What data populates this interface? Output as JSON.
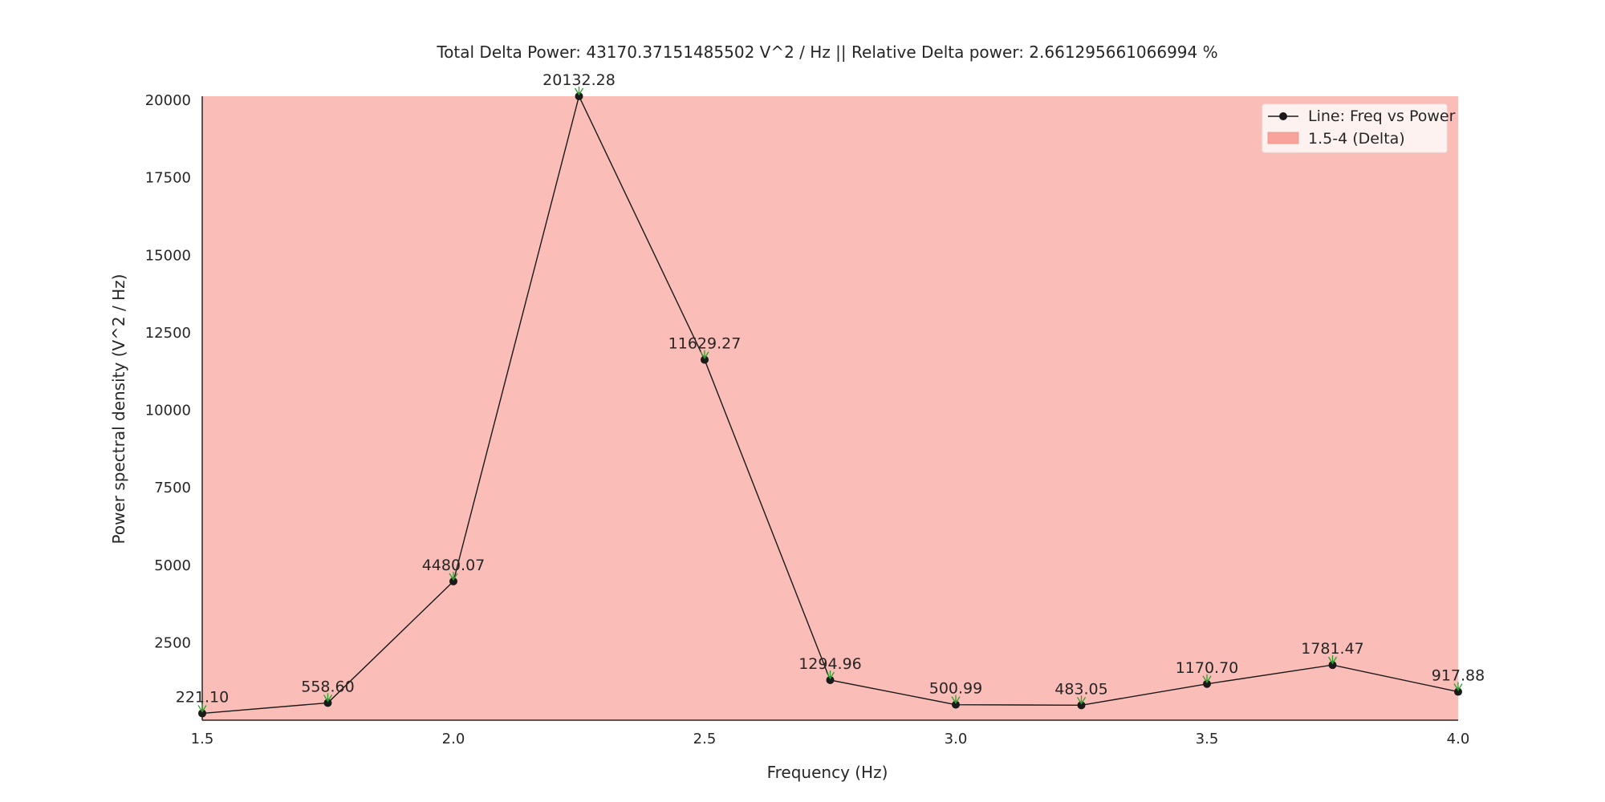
{
  "chart_data": {
    "type": "line",
    "title": "Total Delta Power: 43170.37151485502 V^2 / Hz || Relative Delta power: 2.661295661066994 %",
    "xlabel": "Frequency (Hz)",
    "ylabel": "Power spectral density (V^2 / Hz)",
    "xlim": [
      1.5,
      4.0
    ],
    "ylim": [
      0,
      20132.28
    ],
    "xticks": [
      "1.5",
      "2.0",
      "2.5",
      "3.0",
      "3.5",
      "4.0"
    ],
    "yticks": [
      "2500",
      "5000",
      "7500",
      "10000",
      "12500",
      "15000",
      "17500",
      "20000"
    ],
    "grid": false,
    "legend_position": "top-right",
    "series": [
      {
        "name": "Line: Freq vs Power",
        "color": "#1a1a1a",
        "x": [
          1.5,
          1.75,
          2.0,
          2.25,
          2.5,
          2.75,
          3.0,
          3.25,
          3.5,
          3.75,
          4.0
        ],
        "y": [
          221.1,
          558.6,
          4480.07,
          20132.28,
          11629.27,
          1294.96,
          500.99,
          483.05,
          1170.7,
          1781.47,
          917.88
        ],
        "labels": [
          "221.10",
          "558.60",
          "4480.07",
          "20132.28",
          "11629.27",
          "1294.96",
          "500.99",
          "483.05",
          "1170.70",
          "1781.47",
          "917.88"
        ]
      }
    ],
    "band": {
      "name": "1.5-4 (Delta)",
      "x": [
        1.5,
        4.0
      ],
      "color": "#fbbdb7"
    },
    "annotation_arrow_color": "#2ca02c"
  }
}
